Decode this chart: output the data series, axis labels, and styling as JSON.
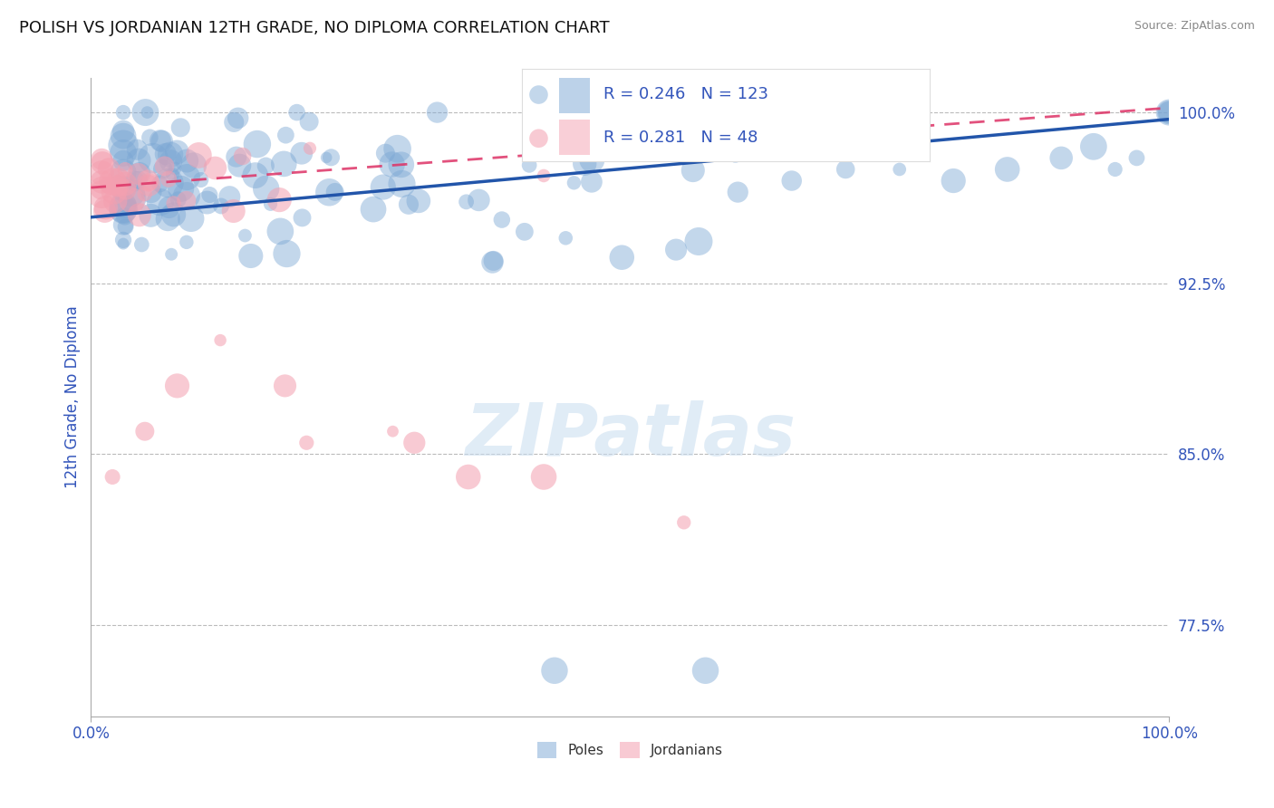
{
  "title": "POLISH VS JORDANIAN 12TH GRADE, NO DIPLOMA CORRELATION CHART",
  "source": "Source: ZipAtlas.com",
  "ylabel": "12th Grade, No Diploma",
  "watermark": "ZIPatlas",
  "legend_poles_label": "Poles",
  "legend_jordan_label": "Jordanians",
  "poles_R": 0.246,
  "poles_N": 123,
  "jordan_R": 0.281,
  "jordan_N": 48,
  "xmin": 0.0,
  "xmax": 1.0,
  "ymin": 0.735,
  "ymax": 1.015,
  "yticks": [
    0.775,
    0.85,
    0.925,
    1.0
  ],
  "ytick_labels": [
    "77.5%",
    "85.0%",
    "92.5%",
    "100.0%"
  ],
  "xtick_labels": [
    "0.0%",
    "100.0%"
  ],
  "xticks": [
    0.0,
    1.0
  ],
  "grid_color": "#bbbbbb",
  "poles_color": "#7ba7d4",
  "jordan_color": "#f4a0b0",
  "poles_line_color": "#2255aa",
  "jordan_line_color": "#dd3366",
  "title_color": "#111111",
  "axis_color": "#3355bb",
  "source_color": "#888888",
  "background_color": "#ffffff",
  "watermark_color": "#c8ddf0",
  "poles_trend_start_y": 0.954,
  "poles_trend_end_y": 0.997,
  "jordan_trend_start_y": 0.967,
  "jordan_trend_end_y": 1.002
}
